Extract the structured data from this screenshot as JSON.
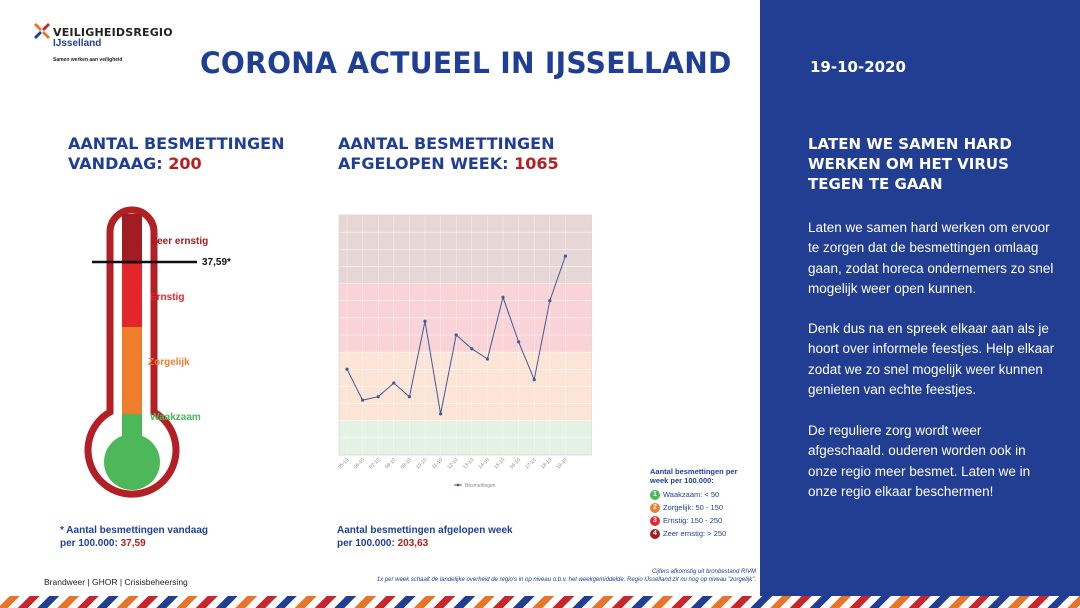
{
  "header": {
    "org_name": "VEILIGHEIDSREGIO",
    "region_name": "IJsselland",
    "tagline": "Samen werken aan veiligheid",
    "title": "CORONA ACTUEEL IN IJSSELLAND"
  },
  "panel": {
    "date": "19-10-2020",
    "heading": "LATEN WE SAMEN HARD WERKEN OM HET VIRUS TEGEN TE GAAN",
    "paragraphs": [
      "Laten we samen hard werken om ervoor te zorgen dat de besmettingen omlaag gaan, zodat horeca ondernemers zo snel mogelijk weer open kunnen.",
      "Denk dus na en spreek elkaar aan als je hoort over informele feestjes. Help elkaar zodat we zo snel mogelijk weer kunnen genieten van echte feestjes.",
      "De reguliere zorg wordt weer afgeschaald. ouderen worden ook in onze regio meer besmet. Laten we in onze regio elkaar beschermen!"
    ]
  },
  "today": {
    "heading_line1": "AANTAL BESMETTINGEN",
    "heading_line2": "VANDAAG: ",
    "value": "200"
  },
  "week": {
    "heading_line1": "AANTAL BESMETTINGEN",
    "heading_line2": "AFGELOPEN WEEK: ",
    "value": "1065"
  },
  "thermometer": {
    "levels": [
      "Zeer ernstig",
      "Ernstig",
      "Zorgelijk",
      "Waakzaam"
    ],
    "marker_label": "37,59*",
    "colors": {
      "zeer_ernstig": "#a11d22",
      "ernstig": "#e3262c",
      "zorgelijk": "#ef7d2b",
      "waakzaam": "#4db85a",
      "outline": "#b21f24"
    }
  },
  "footnote_today": {
    "line1": "* Aantal besmettingen vandaag",
    "line2": "per 100.000: ",
    "value": "37,59"
  },
  "footnote_week": {
    "line1": "Aantal besmettingen afgelopen week",
    "line2": "per 100.000: ",
    "value": "203,63"
  },
  "legend": {
    "title": "Aantal besmettingen per week per 100.000:",
    "items": [
      {
        "num": "1",
        "text": "Waakzaam: < 50",
        "color": "#4db85a"
      },
      {
        "num": "2",
        "text": "Zorgelijk: 50 - 150",
        "color": "#ef7d2b"
      },
      {
        "num": "3",
        "text": "Ernstig: 150 - 250",
        "color": "#e3262c"
      },
      {
        "num": "4",
        "text": "Zeer ernstig: > 250",
        "color": "#a11d22"
      }
    ]
  },
  "chart_data": {
    "type": "line",
    "categories": [
      "05-10",
      "06-10",
      "07-10",
      "08-10",
      "09-10",
      "10-10",
      "11-10",
      "12-10",
      "13-10",
      "14-10",
      "15-10",
      "16-10",
      "17-10",
      "18-10",
      "19-10"
    ],
    "series": [
      {
        "name": "Besmettingen",
        "values": [
          125,
          80,
          85,
          105,
          85,
          195,
          60,
          175,
          155,
          140,
          230,
          165,
          110,
          225,
          290
        ]
      }
    ],
    "ylim": [
      0,
      350
    ],
    "bands": [
      {
        "from": 0,
        "to": 50,
        "color": "#e3f2e3"
      },
      {
        "from": 50,
        "to": 150,
        "color": "#fce4d6"
      },
      {
        "from": 150,
        "to": 250,
        "color": "#f9d3d5"
      },
      {
        "from": 250,
        "to": 350,
        "color": "#e6d6d6"
      }
    ],
    "line_color": "#3f5b9a",
    "grid": true,
    "legend_position": "bottom"
  },
  "footer": {
    "left": "Brandweer | GHOR | Crisisbeheersing",
    "source_line1": "Cijfers afkomstig uit bronbestand RIVM",
    "source_line2": "1x per week schaalt de landelijke overheid de regio's in op niveau o.b.v. het weekgemiddelde. Regio IJsselland zit nu nog op niveau \"zorgelijk\"."
  }
}
